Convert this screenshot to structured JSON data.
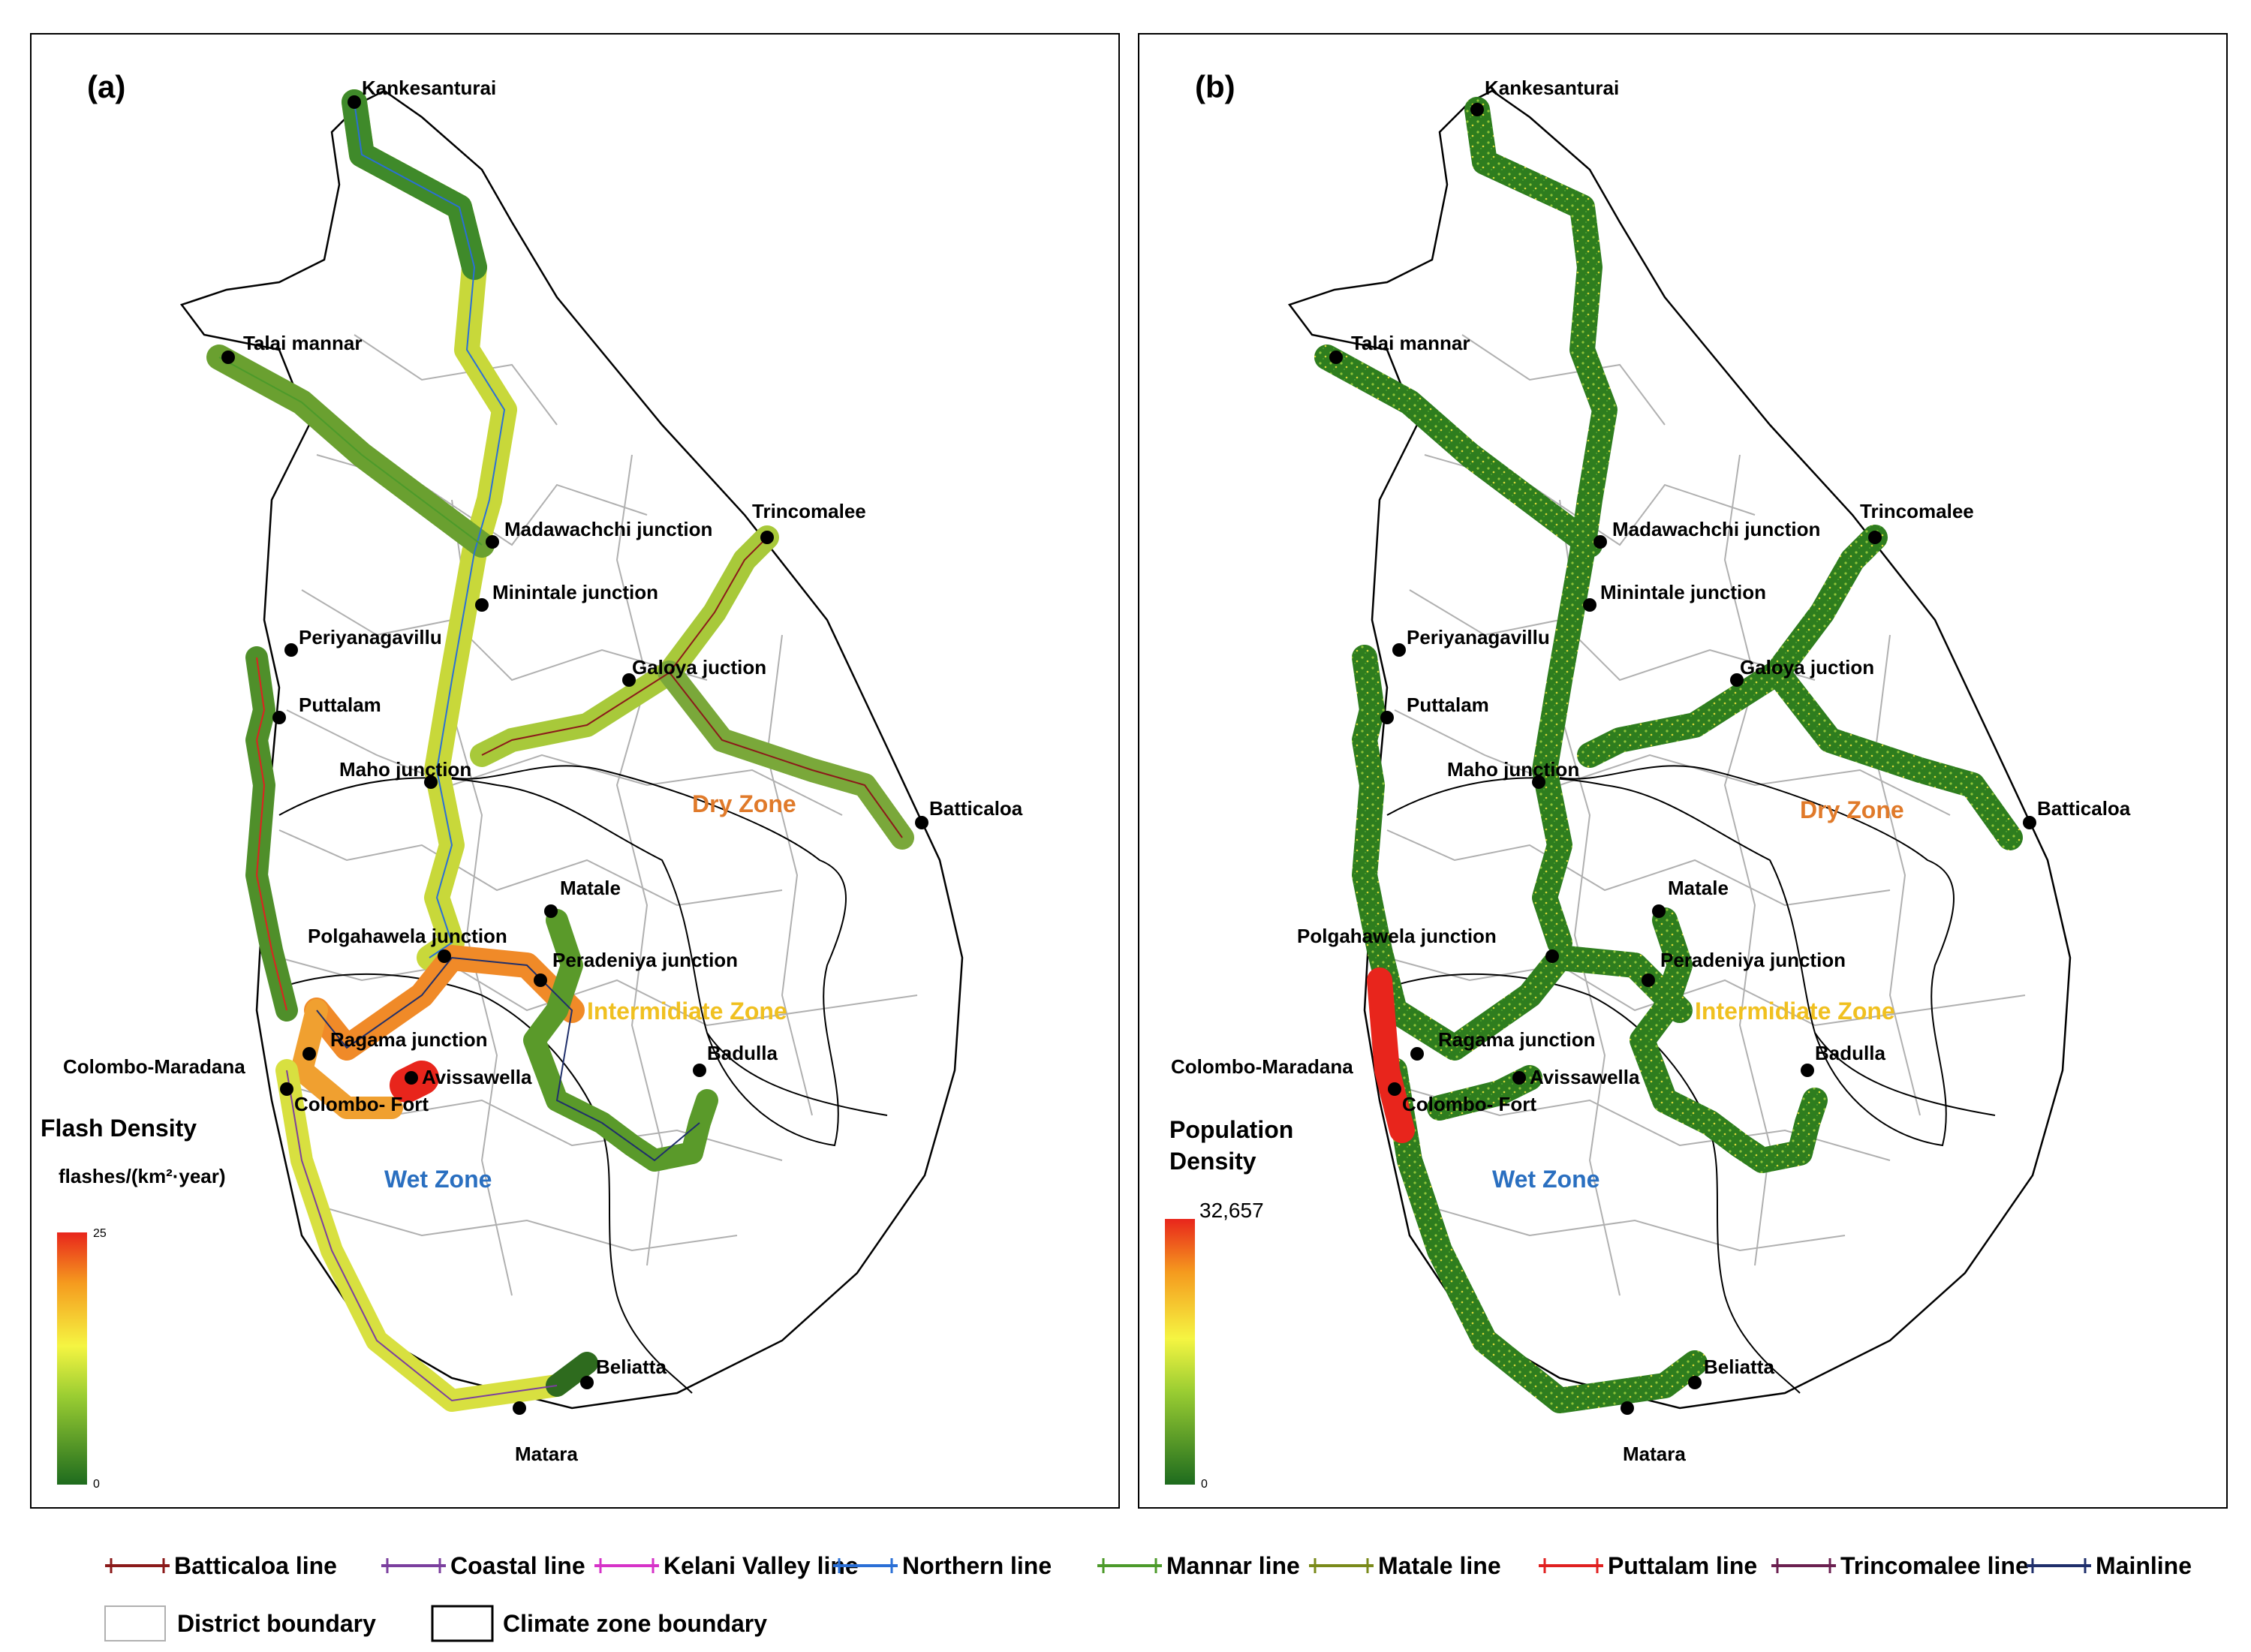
{
  "panels": [
    {
      "label": "(a)",
      "stations": {
        "kankesanturai": "Kankesanturai",
        "talai_mannar": "Talai mannar",
        "trincomalee": "Trincomalee",
        "madawachchi": "Madawachchi junction",
        "minintale": "Minintale junction",
        "periyanagavillu": "Periyanagavillu",
        "galoya": "Galoya juction",
        "puttalam": "Puttalam",
        "maho": "Maho junction",
        "batticaloa": "Batticaloa",
        "matale": "Matale",
        "polgahawela": "Polgahawela junction",
        "peradeniya": "Peradeniya junction",
        "ragama": "Ragama junction",
        "colombo_maradana": "Colombo-Maradana",
        "avissawella": "Avissawella",
        "colombo_fort": "Colombo- Fort",
        "badulla": "Badulla",
        "beliatta": "Beliatta",
        "matara": "Matara"
      },
      "zones": {
        "dry": "Dry Zone",
        "intermediate": "Intermidiate Zone",
        "wet": "Wet Zone"
      },
      "colorbar": {
        "title_line1": "Flash Density",
        "title_line2": "flashes/(km²·year)",
        "max": "25",
        "min": "0"
      }
    },
    {
      "label": "(b)",
      "stations": {
        "kankesanturai": "Kankesanturai",
        "talai_mannar": "Talai mannar",
        "trincomalee": "Trincomalee",
        "madawachchi": "Madawachchi junction",
        "minintale": "Minintale junction",
        "periyanagavillu": "Periyanagavillu",
        "galoya": "Galoya juction",
        "puttalam": "Puttalam",
        "maho": "Maho junction",
        "batticaloa": "Batticaloa",
        "matale": "Matale",
        "polgahawela": "Polgahawela junction",
        "peradeniya": "Peradeniya junction",
        "ragama": "Ragama junction",
        "colombo_maradana": "Colombo-Maradana",
        "avissawella": "Avissawella",
        "colombo_fort": "Colombo- Fort",
        "badulla": "Badulla",
        "beliatta": "Beliatta",
        "matara": "Matara"
      },
      "zones": {
        "dry": "Dry Zone",
        "intermediate": "Intermidiate Zone",
        "wet": "Wet Zone"
      },
      "colorbar": {
        "title_line1": "Population",
        "title_line2": "Density",
        "max": "32,657",
        "min": "0"
      }
    }
  ],
  "legend": {
    "lines": [
      {
        "label": "Batticaloa line",
        "color": "#8b1a1a"
      },
      {
        "label": "Coastal line",
        "color": "#7b3f9e"
      },
      {
        "label": "Kelani Valley line",
        "color": "#d633c8"
      },
      {
        "label": "Northern line",
        "color": "#2a6fd6"
      },
      {
        "label": "Mannar line",
        "color": "#4c9a2a"
      },
      {
        "label": "Matale line",
        "color": "#7a8a1a"
      },
      {
        "label": "Puttalam line",
        "color": "#e02020"
      },
      {
        "label": "Trincomalee line",
        "color": "#6b2050"
      },
      {
        "label": "Mainline",
        "color": "#1f2f6b"
      }
    ],
    "district_boundary": "District boundary",
    "climate_boundary": "Climate zone boundary"
  },
  "colors": {
    "dry_zone_label": "#e07a2a",
    "intermediate_zone_label": "#f0c020",
    "wet_zone_label": "#2a6fc0",
    "district_boundary": "#b0b0b0"
  }
}
